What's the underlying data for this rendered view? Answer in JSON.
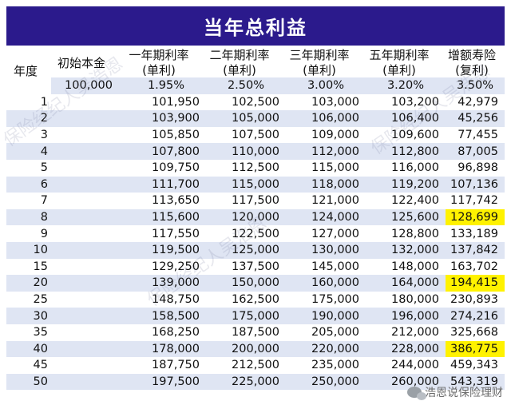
{
  "title": "当年总利益",
  "header": {
    "year": "年度",
    "principal": "初始本金",
    "col1": [
      "一年期利率",
      "(单利)"
    ],
    "col2": [
      "二年期利率",
      "(单利)"
    ],
    "col3": [
      "三年期利率",
      "(单利)"
    ],
    "col4": [
      "五年期利率",
      "(单利)"
    ],
    "col5": [
      "增额寿险",
      "(复利)"
    ]
  },
  "base_row": [
    "100,000",
    "1.95%",
    "2.50%",
    "3.00%",
    "3.20%",
    "3.50%"
  ],
  "rows": [
    [
      "1",
      "101,950",
      "102,500",
      "103,000",
      "103,200",
      "42,979"
    ],
    [
      "2",
      "103,900",
      "105,000",
      "106,000",
      "106,400",
      "45,256"
    ],
    [
      "3",
      "105,850",
      "107,500",
      "109,000",
      "109,600",
      "77,455"
    ],
    [
      "4",
      "107,800",
      "110,000",
      "112,000",
      "112,800",
      "87,005"
    ],
    [
      "5",
      "109,750",
      "112,500",
      "115,000",
      "116,000",
      "96,898"
    ],
    [
      "6",
      "111,700",
      "115,000",
      "118,000",
      "119,200",
      "107,136"
    ],
    [
      "7",
      "113,650",
      "117,500",
      "121,000",
      "122,400",
      "117,742"
    ],
    [
      "8",
      "115,600",
      "120,000",
      "124,000",
      "125,600",
      "128,699"
    ],
    [
      "9",
      "117,550",
      "122,500",
      "127,000",
      "128,800",
      "133,189"
    ],
    [
      "10",
      "119,500",
      "125,000",
      "130,000",
      "132,000",
      "137,842"
    ],
    [
      "15",
      "129,250",
      "137,500",
      "145,000",
      "148,000",
      "163,702"
    ],
    [
      "20",
      "139,000",
      "150,000",
      "160,000",
      "164,000",
      "194,415"
    ],
    [
      "25",
      "148,750",
      "162,500",
      "175,000",
      "180,000",
      "230,893"
    ],
    [
      "30",
      "158,500",
      "175,000",
      "190,000",
      "196,000",
      "274,216"
    ],
    [
      "35",
      "168,250",
      "187,500",
      "205,000",
      "212,000",
      "325,668"
    ],
    [
      "40",
      "178,000",
      "200,000",
      "220,000",
      "228,000",
      "386,775"
    ],
    [
      "45",
      "187,750",
      "212,500",
      "235,000",
      "244,000",
      "459,343"
    ],
    [
      "50",
      "197,500",
      "225,000",
      "250,000",
      "260,000",
      "543,319"
    ]
  ],
  "highlighted_years": [
    "8",
    "20",
    "40"
  ],
  "highlight_color": "#fff200",
  "title_bg": "#2b1a8c",
  "footer": "浩恩说保险理财",
  "watermark": "保险经纪人吴浩恩"
}
